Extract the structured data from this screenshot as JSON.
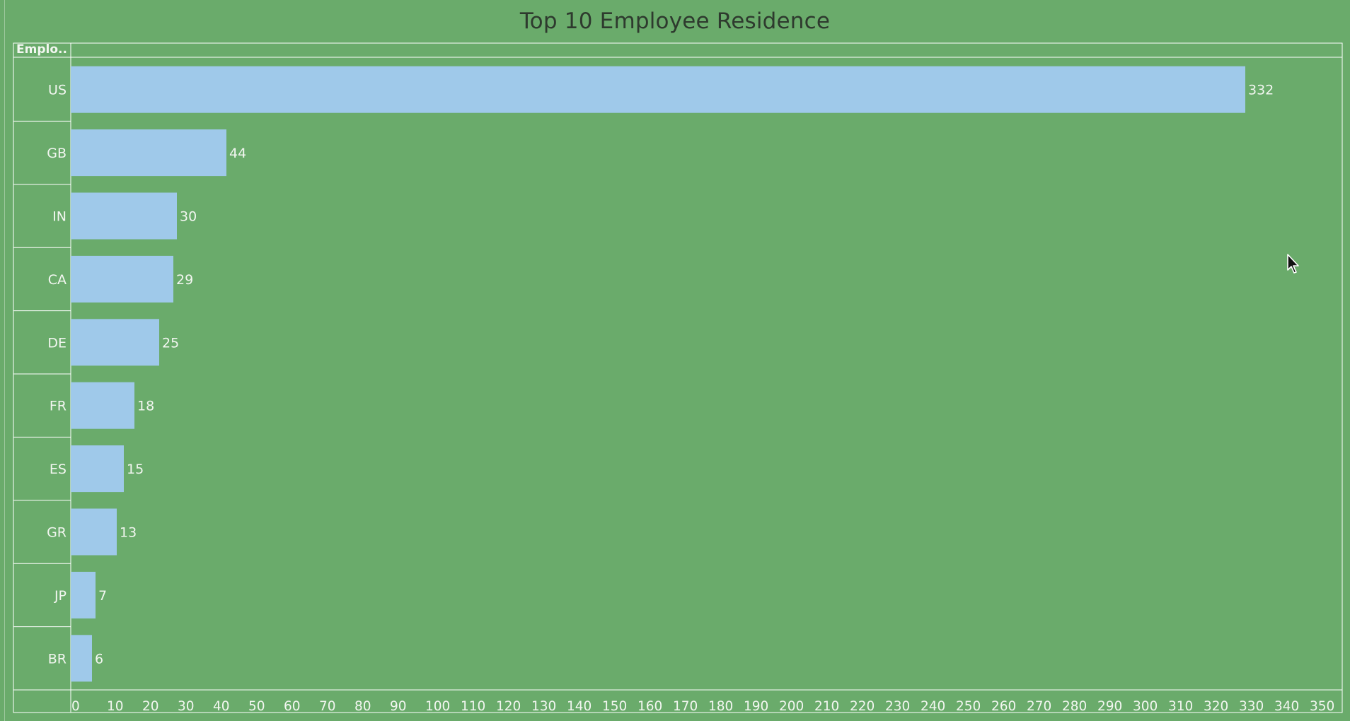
{
  "chart_data": {
    "type": "bar",
    "orientation": "horizontal",
    "title": "Top 10 Employee Residence",
    "row_header": "Emplo..",
    "categories": [
      "US",
      "GB",
      "IN",
      "CA",
      "DE",
      "FR",
      "ES",
      "GR",
      "JP",
      "BR"
    ],
    "values": [
      332,
      44,
      30,
      29,
      25,
      18,
      15,
      13,
      7,
      6
    ],
    "xlim": [
      0,
      358
    ],
    "x_ticks": [
      0,
      10,
      20,
      30,
      40,
      50,
      60,
      70,
      80,
      90,
      100,
      110,
      120,
      130,
      140,
      150,
      160,
      170,
      180,
      190,
      200,
      210,
      220,
      230,
      240,
      250,
      260,
      270,
      280,
      290,
      300,
      310,
      320,
      330,
      340,
      350
    ],
    "show_data_labels": true,
    "grid": false,
    "legend": "none"
  },
  "colors": {
    "background": "#6aab6b",
    "bar": "#9fc9ea",
    "frame": "#ffffff",
    "text": "#f2f6f0",
    "title": "#2e3a2e"
  },
  "icons": {
    "cursor": "mouse-pointer-icon"
  }
}
